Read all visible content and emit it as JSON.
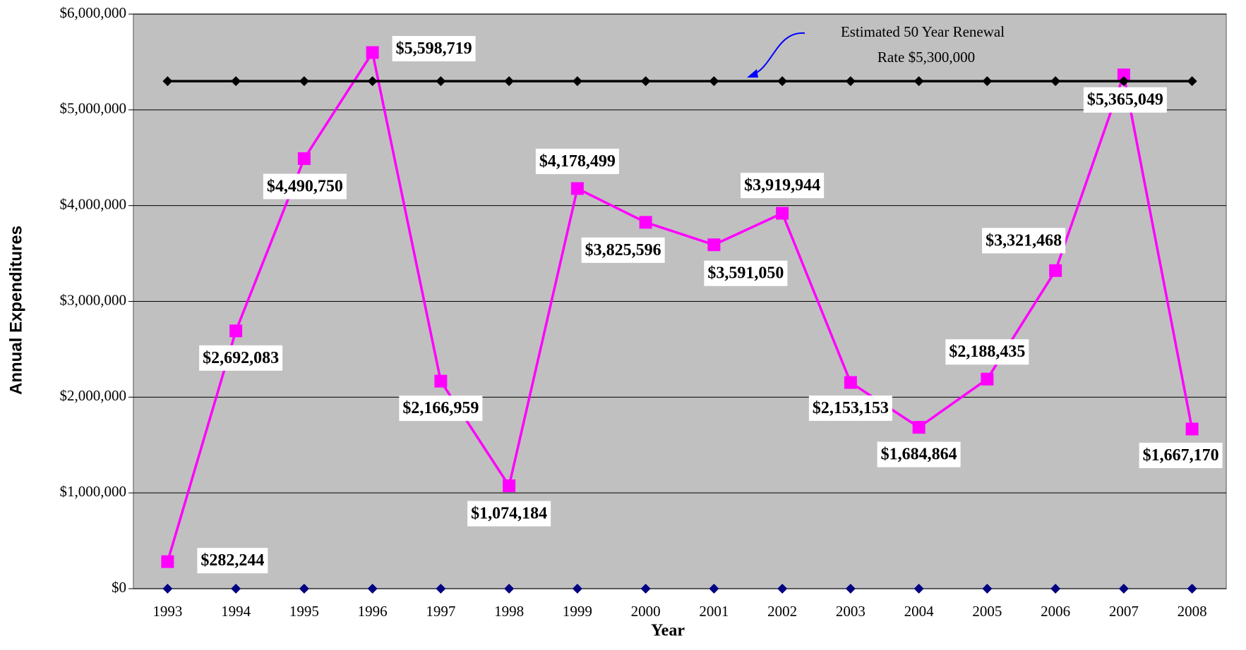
{
  "chart_data": {
    "type": "line",
    "x_label": "Year",
    "y_label": "Annual Expenditures",
    "annotation": [
      "Estimated 50 Year Renewal",
      "Rate $5,300,000"
    ],
    "categories": [
      "1993",
      "1994",
      "1995",
      "1996",
      "1997",
      "1998",
      "1999",
      "2000",
      "2001",
      "2002",
      "2003",
      "2004",
      "2005",
      "2006",
      "2007",
      "2008"
    ],
    "series": [
      {
        "color": "#ff00ff",
        "marker": "square",
        "values": [
          282244,
          2692083,
          4490750,
          5598719,
          2166959,
          1074184,
          4178499,
          3825596,
          3591050,
          3919944,
          2153153,
          1684864,
          2188435,
          3321468,
          5365049,
          1667170
        ],
        "value_labels": [
          "$282,244",
          "$2,692,083",
          "$4,490,750",
          "$5,598,719",
          "$2,166,959",
          "$1,074,184",
          "$4,178,499",
          "$3,825,596",
          "$3,591,050",
          "$3,919,944",
          "$2,153,153",
          "$1,684,864",
          "$2,188,435",
          "$3,321,468",
          "$5,365,049",
          "$1,667,170"
        ]
      },
      {
        "color": "#000000",
        "marker": "diamond",
        "values": [
          5300000,
          5300000,
          5300000,
          5300000,
          5300000,
          5300000,
          5300000,
          5300000,
          5300000,
          5300000,
          5300000,
          5300000,
          5300000,
          5300000,
          5300000,
          5300000
        ]
      },
      {
        "color": "#000080",
        "marker": "diamond",
        "line": false,
        "values": [
          0,
          0,
          0,
          0,
          0,
          0,
          0,
          0,
          0,
          0,
          0,
          0,
          0,
          0,
          0,
          0
        ]
      }
    ],
    "ylim": [
      0,
      6000000
    ],
    "yticks": [
      {
        "value": 0,
        "label": "$0"
      },
      {
        "value": 1000000,
        "label": "$1,000,000"
      },
      {
        "value": 2000000,
        "label": "$2,000,000"
      },
      {
        "value": 3000000,
        "label": "$3,000,000"
      },
      {
        "value": 4000000,
        "label": "$4,000,000"
      },
      {
        "value": 5000000,
        "label": "$5,000,000"
      },
      {
        "value": 6000000,
        "label": "$6,000,000"
      }
    ],
    "grid": true,
    "background": "#c0c0c0"
  }
}
